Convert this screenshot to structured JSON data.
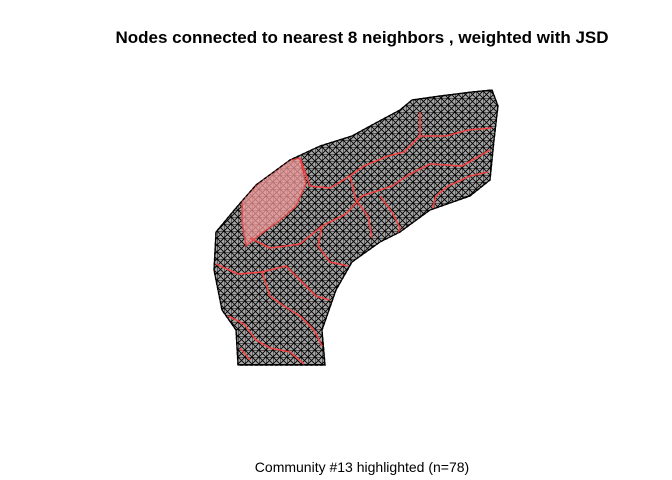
{
  "title": "Nodes connected to nearest 8 neighbors , weighted with JSD",
  "subtitle": "Community #13 highlighted (n=78)",
  "colors": {
    "node_edges": "#000000",
    "community_edges": "#ff4040",
    "community_fill": "#f29a9a"
  }
}
